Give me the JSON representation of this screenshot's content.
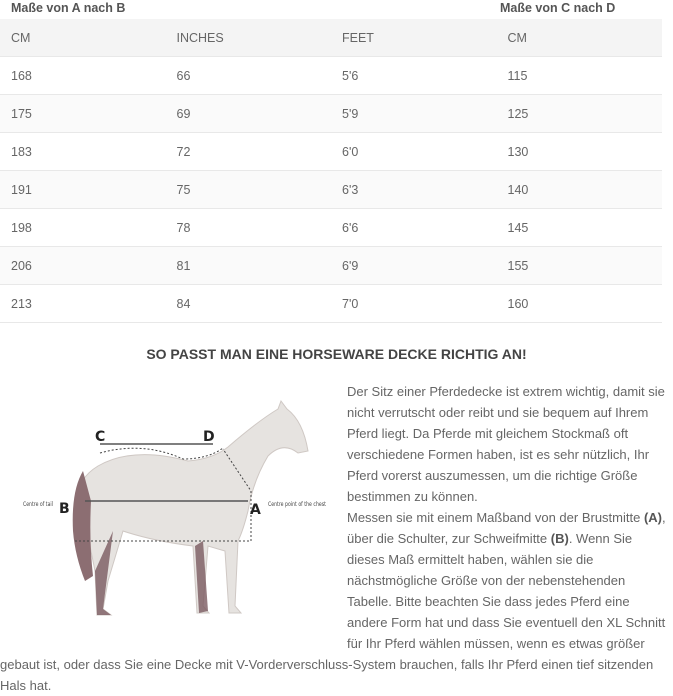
{
  "table": {
    "groups": [
      "Maße von A nach B",
      "Maße von C nach D"
    ],
    "headers": [
      "CM",
      "INCHES",
      "FEET",
      "CM"
    ],
    "rows": [
      [
        "168",
        "66",
        "5'6",
        "115"
      ],
      [
        "175",
        "69",
        "5'9",
        "125"
      ],
      [
        "183",
        "72",
        "6'0",
        "130"
      ],
      [
        "191",
        "75",
        "6'3",
        "140"
      ],
      [
        "198",
        "78",
        "6'6",
        "145"
      ],
      [
        "206",
        "81",
        "6'9",
        "155"
      ],
      [
        "213",
        "84",
        "7'0",
        "160"
      ]
    ]
  },
  "heading": "SO PASST MAN EINE HORSEWARE DECKE RICHTIG AN!",
  "figure": {
    "label_a": "A",
    "label_b": "B",
    "label_c": "C",
    "label_d": "D",
    "tail_label": "Centre of tail",
    "chest_label": "Centre point of the chest"
  },
  "text": {
    "p1": "Der Sitz einer Pferdedecke ist extrem wichtig, damit sie nicht verrutscht oder reibt und sie bequem auf Ihrem Pferd liegt. Da Pferde mit gleichem Stockmaß oft verschiedene Formen haben, ist es sehr nützlich, Ihr Pferd vorerst auszumessen, um die richtige Größe bestimmen zu können.",
    "p2a": "Messen sie mit einem Maßband von der Brustmitte ",
    "p2b": "(A)",
    "p2c": ", über die Schulter, zur Schweifmitte ",
    "p2d": "(B)",
    "p2e": ". Wenn Sie dieses Maß ermittelt haben, wählen sie die nächstmögliche Größe von der nebenstehenden Tabelle. Bitte beachten Sie dass jedes Pferd eine andere Form hat und dass Sie eventuell den XL Schnitt für Ihr Pferd wählen müssen, wenn es etwas größer gebaut ist, oder dass Sie eine Decke mit V-Vorderverschluss-System brauchen, falls Ihr Pferd einen tief sitzenden Hals hat."
  }
}
